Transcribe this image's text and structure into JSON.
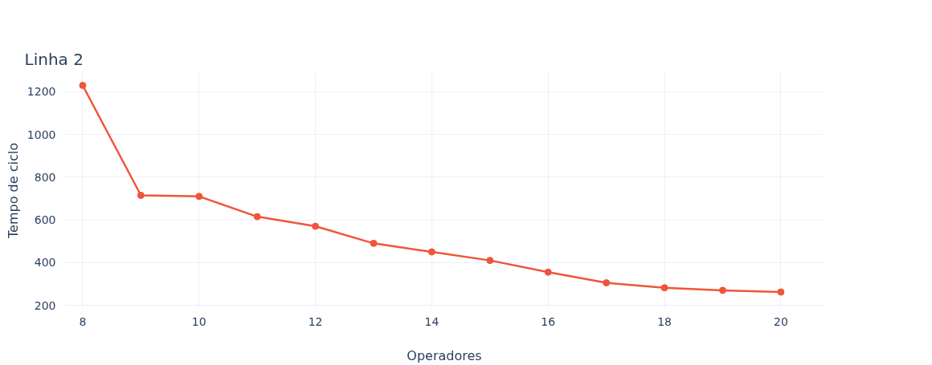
{
  "chart_data": {
    "type": "line",
    "title": "Linha 2",
    "xlabel": "Operadores",
    "ylabel": "Tempo de ciclo",
    "x": [
      8,
      9,
      10,
      11,
      12,
      13,
      14,
      15,
      16,
      17,
      18,
      19,
      20
    ],
    "series": [
      {
        "color": "#ef553b",
        "values": [
          1230,
          715,
          710,
          615,
          570,
          490,
          450,
          410,
          355,
          305,
          282,
          270,
          262
        ]
      }
    ],
    "xlim": [
      7.69,
      20.74
    ],
    "ylim": [
      185,
      1290
    ],
    "xticks": [
      8,
      10,
      12,
      14,
      16,
      18,
      20
    ],
    "yticks": [
      200,
      400,
      600,
      800,
      1000,
      1200
    ],
    "grid": true,
    "marker": "circle",
    "line_style": "solid"
  }
}
